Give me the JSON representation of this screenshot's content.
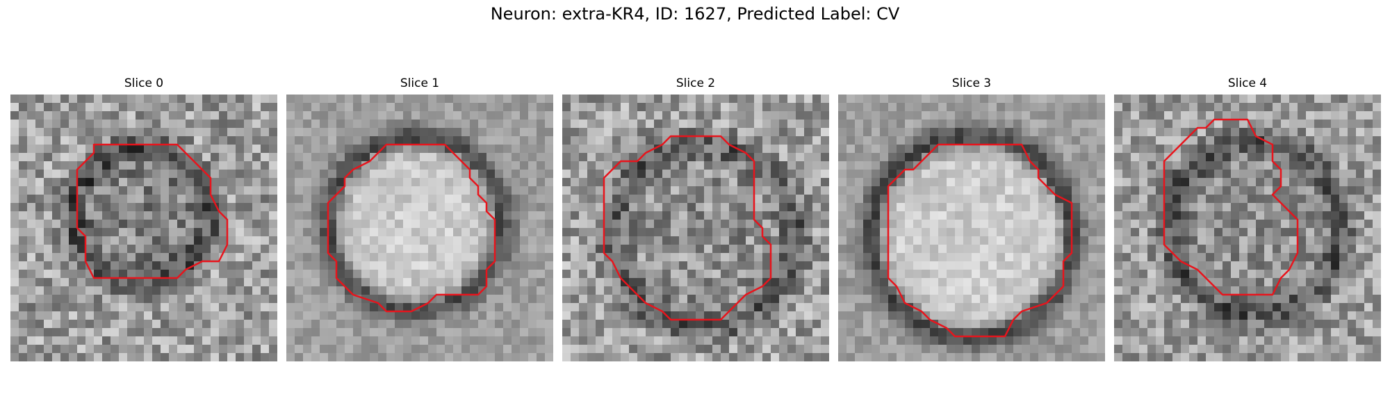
{
  "figure": {
    "title": "Neuron: extra-KR4, ID: 1627, Predicted Label: CV",
    "contour_color": "#e8141c"
  },
  "panels": [
    {
      "title": "Slice 0"
    },
    {
      "title": "Slice 1"
    },
    {
      "title": "Slice 2"
    },
    {
      "title": "Slice 3"
    },
    {
      "title": "Slice 4"
    }
  ]
}
